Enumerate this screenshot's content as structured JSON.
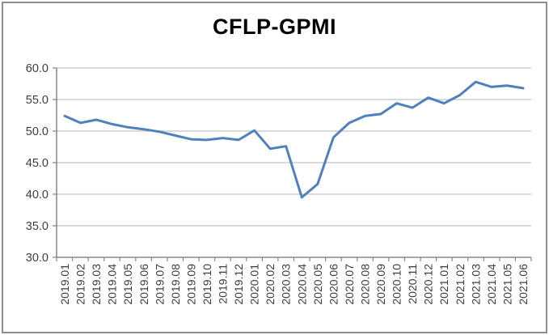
{
  "window": {
    "background": "#ffffff",
    "border_color": "#8f8f8f"
  },
  "chart_data": {
    "type": "line",
    "title": "CFLP-GPMI",
    "xlabel": "",
    "ylabel": "",
    "x": [
      "2019.01",
      "2019.02",
      "2019.03",
      "2019.04",
      "2019.05",
      "2019.06",
      "2019.07",
      "2019.08",
      "2019.09",
      "2019.10",
      "2019.11",
      "2019.12",
      "2020.01",
      "2020.02",
      "2020.03",
      "2020.04",
      "2020.05",
      "2020.06",
      "2020.07",
      "2020.08",
      "2020.09",
      "2020.10",
      "2020.11",
      "2020.12",
      "2021.01",
      "2021.02",
      "2021.03",
      "2021.04",
      "2021.05",
      "2021.06"
    ],
    "series": [
      {
        "name": "CFLP-GPMI",
        "color": "#4f81bd",
        "values": [
          52.4,
          51.3,
          51.8,
          51.1,
          50.6,
          50.3,
          49.9,
          49.3,
          48.7,
          48.6,
          48.9,
          48.6,
          50.1,
          47.2,
          47.6,
          39.5,
          41.6,
          49.0,
          51.3,
          52.4,
          52.7,
          54.4,
          53.7,
          55.3,
          54.4,
          55.7,
          57.8,
          57.0,
          57.2,
          56.8
        ]
      }
    ],
    "ylim": [
      30.0,
      60.0
    ],
    "ytick_labels": [
      "60.0",
      "55.0",
      "50.0",
      "45.0",
      "40.0",
      "35.0",
      "30.0"
    ],
    "grid": "horizontal-gridlines-on",
    "legend": "none",
    "x_tick_label_rotation_deg": 90
  },
  "styles": {
    "line_color": "#4f81bd",
    "gridline_color": "#c3c3c3",
    "axis_color": "#8a8a8a",
    "tick_label_color": "#3d3d3d"
  }
}
